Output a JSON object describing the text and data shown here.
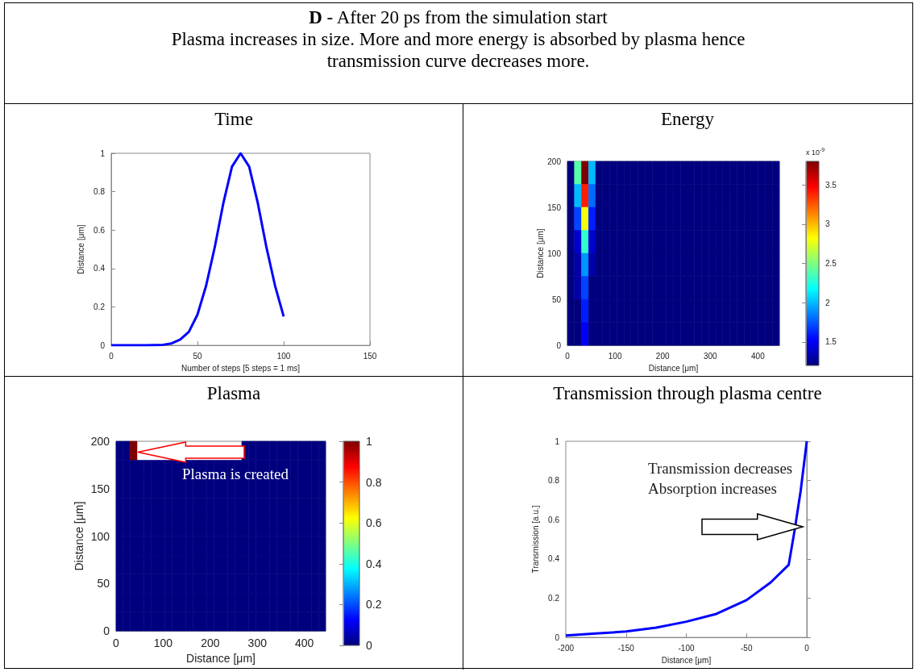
{
  "chart_data": [
    {
      "type": "other",
      "title": "D - After 20 ps from the simulation start",
      "subtitle": "Plasma increases in size. More and more energy is absorbed by plasma hence transmission curve decreases more."
    },
    {
      "type": "line",
      "title": "Time",
      "xlabel": "Number of steps [5 steps = 1 ms]",
      "ylabel": "Distance [μm]",
      "color": "#0000ff",
      "x": [
        0,
        10,
        20,
        30,
        35,
        40,
        45,
        50,
        55,
        60,
        65,
        70,
        75,
        80,
        85,
        90,
        95,
        100
      ],
      "values": [
        0,
        0,
        0,
        0.003,
        0.01,
        0.03,
        0.07,
        0.16,
        0.31,
        0.51,
        0.74,
        0.93,
        1,
        0.93,
        0.74,
        0.51,
        0.31,
        0.15
      ],
      "xlim": [
        0,
        150
      ],
      "xticks": [
        0,
        50,
        100,
        150
      ],
      "ylim": [
        0,
        1
      ],
      "yticks": [
        0,
        0.2,
        0.4,
        0.6,
        0.8,
        1
      ]
    },
    {
      "type": "heatmap",
      "title": "Energy",
      "xlabel": "Distance [μm]",
      "ylabel": "Distance [μm]",
      "clabel": "x 10$^{-9}$",
      "cells": [
        [
          1.2,
          2.4,
          3.8,
          2.0,
          1.2,
          1.2,
          1.2,
          1.2,
          1.2,
          1.2,
          1.2,
          1.2,
          1.2,
          1.2,
          1.2,
          1.2,
          1.2,
          1.2,
          1.2,
          1.2,
          1.2,
          1.2,
          1.2,
          1.2,
          1.2,
          1.2,
          1.2,
          1.2,
          1.2,
          1.2
        ],
        [
          1.2,
          2.0,
          3.4,
          1.8,
          1.2,
          1.2,
          1.2,
          1.2,
          1.2,
          1.2,
          1.2,
          1.2,
          1.2,
          1.2,
          1.2,
          1.2,
          1.2,
          1.2,
          1.2,
          1.2,
          1.2,
          1.2,
          1.2,
          1.2,
          1.2,
          1.2,
          1.2,
          1.2,
          1.2,
          1.2
        ],
        [
          1.2,
          1.7,
          2.8,
          1.6,
          1.2,
          1.2,
          1.2,
          1.2,
          1.2,
          1.2,
          1.2,
          1.2,
          1.2,
          1.2,
          1.2,
          1.2,
          1.2,
          1.2,
          1.2,
          1.2,
          1.2,
          1.2,
          1.2,
          1.2,
          1.2,
          1.2,
          1.2,
          1.2,
          1.2,
          1.2
        ],
        [
          1.2,
          1.4,
          2.3,
          1.4,
          1.2,
          1.2,
          1.2,
          1.2,
          1.2,
          1.2,
          1.2,
          1.2,
          1.2,
          1.2,
          1.2,
          1.2,
          1.2,
          1.2,
          1.2,
          1.2,
          1.2,
          1.2,
          1.2,
          1.2,
          1.2,
          1.2,
          1.2,
          1.2,
          1.2,
          1.2
        ],
        [
          1.2,
          1.3,
          1.9,
          1.3,
          1.2,
          1.2,
          1.2,
          1.2,
          1.2,
          1.2,
          1.2,
          1.2,
          1.2,
          1.2,
          1.2,
          1.2,
          1.2,
          1.2,
          1.2,
          1.2,
          1.2,
          1.2,
          1.2,
          1.2,
          1.2,
          1.2,
          1.2,
          1.2,
          1.2,
          1.2
        ],
        [
          1.2,
          1.3,
          1.7,
          1.2,
          1.2,
          1.2,
          1.2,
          1.2,
          1.2,
          1.2,
          1.2,
          1.2,
          1.2,
          1.2,
          1.2,
          1.2,
          1.2,
          1.2,
          1.2,
          1.2,
          1.2,
          1.2,
          1.2,
          1.2,
          1.2,
          1.2,
          1.2,
          1.2,
          1.2,
          1.2
        ],
        [
          1.2,
          1.2,
          1.6,
          1.2,
          1.2,
          1.2,
          1.2,
          1.2,
          1.2,
          1.2,
          1.2,
          1.2,
          1.2,
          1.2,
          1.2,
          1.2,
          1.2,
          1.2,
          1.2,
          1.2,
          1.2,
          1.2,
          1.2,
          1.2,
          1.2,
          1.2,
          1.2,
          1.2,
          1.2,
          1.2
        ],
        [
          1.2,
          1.2,
          1.5,
          1.2,
          1.2,
          1.2,
          1.2,
          1.2,
          1.2,
          1.2,
          1.2,
          1.2,
          1.2,
          1.2,
          1.2,
          1.2,
          1.2,
          1.2,
          1.2,
          1.2,
          1.2,
          1.2,
          1.2,
          1.2,
          1.2,
          1.2,
          1.2,
          1.2,
          1.2,
          1.2
        ]
      ],
      "xlim": [
        0,
        445
      ],
      "xticks": [
        0,
        100,
        200,
        300,
        400
      ],
      "ylim": [
        0,
        200
      ],
      "yticks": [
        0,
        50,
        100,
        150,
        200
      ],
      "clim": [
        1.2,
        3.8
      ],
      "cticks": [
        1.5,
        2,
        2.5,
        3,
        3.5
      ]
    },
    {
      "type": "heatmap",
      "title": "Plasma",
      "xlabel": "Distance [μm]",
      "ylabel": "Distance [μm]",
      "annotations": [
        "Plasma is created"
      ],
      "cells": [
        [
          0,
          0,
          1,
          null,
          null,
          null,
          null,
          null,
          null,
          null,
          null,
          null,
          null,
          null,
          null,
          null,
          null,
          null,
          0,
          0,
          0,
          0,
          0,
          0,
          0,
          0,
          0,
          0,
          0,
          0
        ],
        [
          0,
          0,
          0,
          0,
          0,
          0,
          0,
          0,
          0,
          0,
          0,
          0,
          0,
          0,
          0,
          0,
          0,
          0,
          0,
          0,
          0,
          0,
          0,
          0,
          0,
          0,
          0,
          0,
          0,
          0
        ],
        [
          0,
          0,
          0,
          0,
          0,
          0,
          0,
          0,
          0,
          0,
          0,
          0,
          0,
          0,
          0,
          0,
          0,
          0,
          0,
          0,
          0,
          0,
          0,
          0,
          0,
          0,
          0,
          0,
          0,
          0
        ],
        [
          0,
          0,
          0,
          0,
          0,
          0,
          0,
          0,
          0,
          0,
          0,
          0,
          0,
          0,
          0,
          0,
          0,
          0,
          0,
          0,
          0,
          0,
          0,
          0,
          0,
          0,
          0,
          0,
          0,
          0
        ],
        [
          0,
          0,
          0,
          0,
          0,
          0,
          0,
          0,
          0,
          0,
          0,
          0,
          0,
          0,
          0,
          0,
          0,
          0,
          0,
          0,
          0,
          0,
          0,
          0,
          0,
          0,
          0,
          0,
          0,
          0
        ],
        [
          0,
          0,
          0,
          0,
          0,
          0,
          0,
          0,
          0,
          0,
          0,
          0,
          0,
          0,
          0,
          0,
          0,
          0,
          0,
          0,
          0,
          0,
          0,
          0,
          0,
          0,
          0,
          0,
          0,
          0
        ],
        [
          0,
          0,
          0,
          0,
          0,
          0,
          0,
          0,
          0,
          0,
          0,
          0,
          0,
          0,
          0,
          0,
          0,
          0,
          0,
          0,
          0,
          0,
          0,
          0,
          0,
          0,
          0,
          0,
          0,
          0
        ],
        [
          0,
          0,
          0,
          0,
          0,
          0,
          0,
          0,
          0,
          0,
          0,
          0,
          0,
          0,
          0,
          0,
          0,
          0,
          0,
          0,
          0,
          0,
          0,
          0,
          0,
          0,
          0,
          0,
          0,
          0
        ],
        [
          0,
          0,
          0,
          0,
          0,
          0,
          0,
          0,
          0,
          0,
          0,
          0,
          0,
          0,
          0,
          0,
          0,
          0,
          0,
          0,
          0,
          0,
          0,
          0,
          0,
          0,
          0,
          0,
          0,
          0
        ],
        [
          0,
          0,
          0,
          0,
          0,
          0,
          0,
          0,
          0,
          0,
          0,
          0,
          0,
          0,
          0,
          0,
          0,
          0,
          0,
          0,
          0,
          0,
          0,
          0,
          0,
          0,
          0,
          0,
          0,
          0
        ]
      ],
      "xlim": [
        0,
        445
      ],
      "xticks": [
        0,
        100,
        200,
        300,
        400
      ],
      "ylim": [
        0,
        200
      ],
      "yticks": [
        0,
        50,
        100,
        150,
        200
      ],
      "clim": [
        0,
        1
      ],
      "cticks": [
        0,
        0.2,
        0.4,
        0.6,
        0.8,
        1
      ]
    },
    {
      "type": "line",
      "title": "Transmission through plasma centre",
      "xlabel": "Distance [μm]",
      "ylabel": "Transmission [a.u.]",
      "annotations": [
        "Transmission decreases",
        "Absorption increases"
      ],
      "color": "#0000ff",
      "x": [
        -200,
        -175,
        -150,
        -125,
        -100,
        -75,
        -50,
        -30,
        -15,
        -10,
        -5,
        0
      ],
      "values": [
        0.01,
        0.02,
        0.03,
        0.05,
        0.08,
        0.12,
        0.19,
        0.28,
        0.37,
        0.55,
        0.75,
        1
      ],
      "xlim": [
        -200,
        0
      ],
      "xticks": [
        -200,
        -150,
        -100,
        -50,
        0
      ],
      "ylim": [
        0,
        1
      ],
      "yticks": [
        0,
        0.2,
        0.4,
        0.6,
        0.8,
        1
      ]
    }
  ]
}
